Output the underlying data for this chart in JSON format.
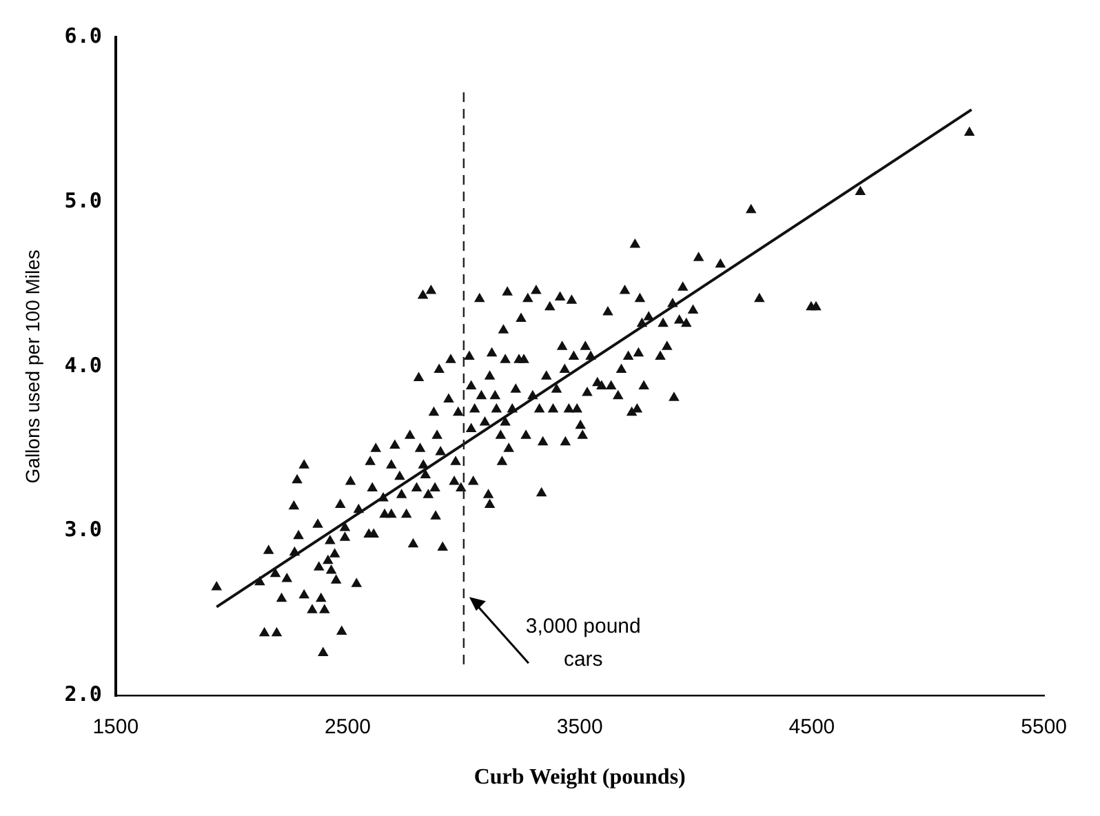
{
  "chart_data": {
    "type": "scatter",
    "xlabel": "Curb Weight (pounds)",
    "ylabel": "Gallons used per 100 Miles",
    "xlim": [
      1500,
      5500
    ],
    "xticks": [
      1500,
      2500,
      3500,
      4500,
      5500
    ],
    "ylim": [
      2,
      6
    ],
    "yticks": [
      {
        "value": 2,
        "label": "2.0"
      },
      {
        "value": 3,
        "label": "3.0"
      },
      {
        "value": 4,
        "label": "4.0"
      },
      {
        "value": 5,
        "label": "5.0"
      },
      {
        "value": 6,
        "label": "6.0"
      }
    ],
    "grid": false,
    "legend": false,
    "marker": "triangle",
    "ref_lines": [
      {
        "axis": "x",
        "value": 3000,
        "line_style": "dashed",
        "color": "#222222"
      }
    ],
    "annotations": [
      {
        "text": "3,000 pound cars",
        "x": 3000,
        "y": 2.5
      }
    ],
    "series": [
      {
        "color": "#111111",
        "x": [
          1935,
          2121,
          2159,
          2141,
          2194,
          2188,
          2238,
          2215,
          2271,
          2268,
          2282,
          2312,
          2288,
          2312,
          2347,
          2371,
          2376,
          2385,
          2400,
          2394,
          2415,
          2429,
          2444,
          2450,
          2424,
          2468,
          2474,
          2488,
          2488,
          2512,
          2538,
          2547,
          2591,
          2612,
          2606,
          2621,
          2597,
          2653,
          2659,
          2688,
          2688,
          2703,
          2724,
          2732,
          2753,
          2768,
          2782,
          2797,
          2806,
          2812,
          2824,
          2859,
          2826,
          2835,
          2847,
          2871,
          2876,
          2879,
          2885,
          2894,
          2900,
          2909,
          2935,
          2944,
          2959,
          2965,
          2976,
          2988,
          3024,
          3032,
          3032,
          3041,
          3047,
          3068,
          3076,
          3091,
          3106,
          3112,
          3112,
          3121,
          3135,
          3141,
          3159,
          3165,
          3171,
          3179,
          3188,
          3179,
          3194,
          3209,
          3224,
          3238,
          3247,
          3259,
          3268,
          3276,
          3297,
          3312,
          3326,
          3335,
          3341,
          3356,
          3371,
          3385,
          3400,
          3415,
          3424,
          3435,
          3438,
          3453,
          3465,
          3474,
          3488,
          3503,
          3512,
          3524,
          3532,
          3547,
          3576,
          3594,
          3621,
          3635,
          3665,
          3679,
          3694,
          3709,
          3724,
          3738,
          3747,
          3753,
          3759,
          3768,
          3776,
          3797,
          3847,
          3859,
          3876,
          3900,
          3906,
          3929,
          3944,
          3959,
          3988,
          4012,
          4106,
          4238,
          4274,
          4497,
          4518,
          4709,
          5179
        ],
        "values": [
          2.66,
          2.69,
          2.88,
          2.38,
          2.38,
          2.74,
          2.71,
          2.59,
          2.87,
          3.15,
          3.31,
          3.4,
          2.97,
          2.61,
          2.52,
          3.04,
          2.78,
          2.59,
          2.52,
          2.26,
          2.82,
          2.76,
          2.86,
          2.7,
          2.94,
          3.16,
          2.39,
          3.02,
          2.96,
          3.3,
          2.68,
          3.13,
          2.98,
          2.98,
          3.26,
          3.5,
          3.42,
          3.2,
          3.1,
          3.1,
          3.4,
          3.52,
          3.33,
          3.22,
          3.1,
          3.58,
          2.92,
          3.26,
          3.93,
          3.5,
          4.43,
          4.46,
          3.4,
          3.34,
          3.22,
          3.72,
          3.26,
          3.09,
          3.58,
          3.98,
          3.48,
          2.9,
          3.8,
          4.04,
          3.3,
          3.42,
          3.72,
          3.26,
          4.06,
          3.88,
          3.62,
          3.3,
          3.74,
          4.41,
          3.82,
          3.66,
          3.22,
          3.16,
          3.94,
          4.08,
          3.82,
          3.74,
          3.58,
          3.42,
          4.22,
          3.66,
          4.45,
          4.04,
          3.5,
          3.74,
          3.86,
          4.04,
          4.29,
          4.04,
          3.58,
          4.41,
          3.82,
          4.46,
          3.74,
          3.23,
          3.54,
          3.94,
          4.36,
          3.74,
          3.86,
          4.42,
          4.12,
          3.98,
          3.54,
          3.74,
          4.4,
          4.06,
          3.74,
          3.64,
          3.58,
          4.12,
          3.84,
          4.06,
          3.9,
          3.88,
          4.33,
          3.88,
          3.82,
          3.98,
          4.46,
          4.06,
          3.72,
          4.74,
          3.74,
          4.08,
          4.41,
          4.26,
          3.88,
          4.3,
          4.06,
          4.26,
          4.12,
          4.38,
          3.81,
          4.28,
          4.48,
          4.26,
          4.34,
          4.66,
          4.62,
          4.95,
          4.41,
          4.36,
          4.36,
          5.06,
          5.42
        ]
      },
      {
        "type": "line",
        "color": "#111111",
        "marker": "none",
        "line_style": "solid",
        "x": [
          1935,
          5188
        ],
        "values": [
          2.54,
          5.56
        ]
      }
    ]
  }
}
